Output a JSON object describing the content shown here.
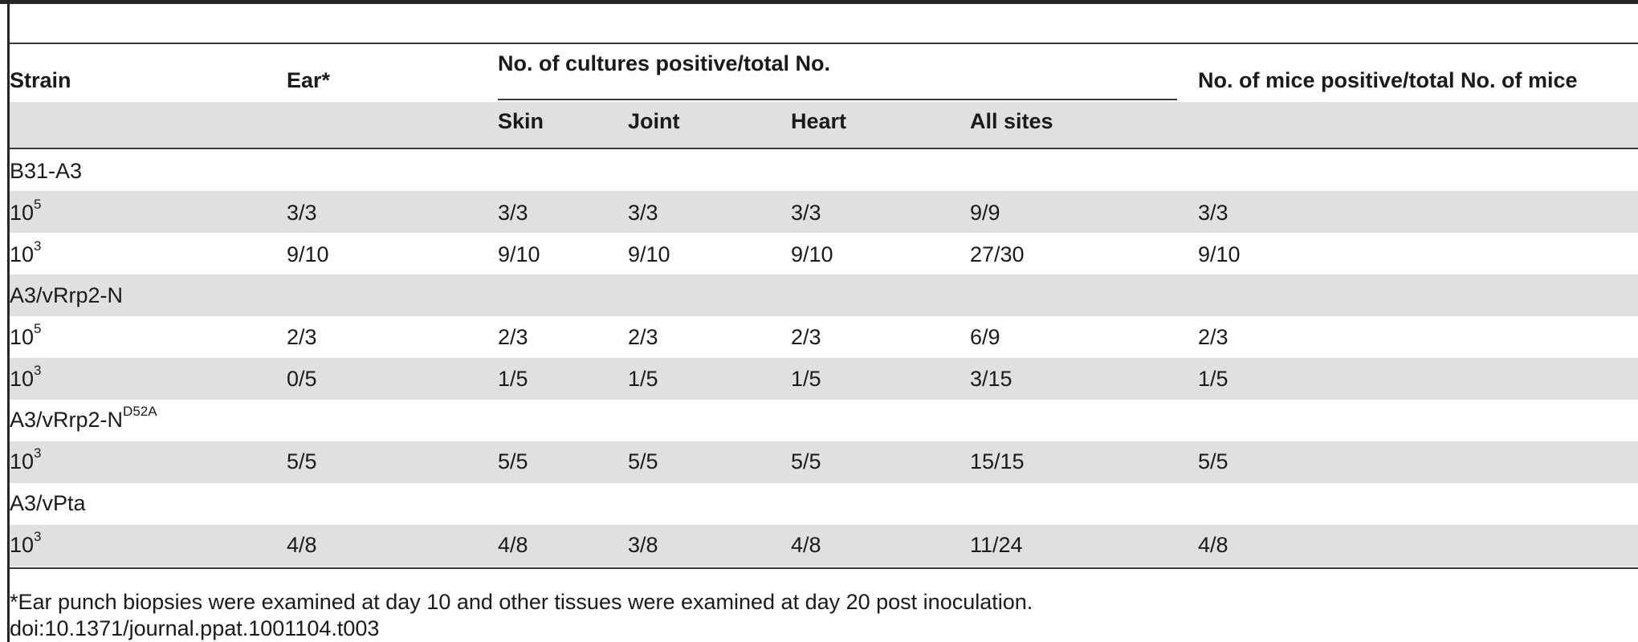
{
  "table": {
    "headers": {
      "strain": "Strain",
      "ear": "Ear*",
      "cultures_group": "No. of cultures positive/total No.",
      "mice": "No. of mice positive/total No. of mice",
      "skin": "Skin",
      "joint": "Joint",
      "heart": "Heart",
      "all_sites": "All sites"
    },
    "groups": [
      {
        "strain": "B31-A3",
        "strain_sup": "",
        "rows": [
          {
            "dose_base": "10",
            "dose_exp": "5",
            "ear": "3/3",
            "skin": "3/3",
            "joint": "3/3",
            "heart": "3/3",
            "all_sites": "9/9",
            "mice": "3/3"
          },
          {
            "dose_base": "10",
            "dose_exp": "3",
            "ear": "9/10",
            "skin": "9/10",
            "joint": "9/10",
            "heart": "9/10",
            "all_sites": "27/30",
            "mice": "9/10"
          }
        ]
      },
      {
        "strain": "A3/vRrp2-N",
        "strain_sup": "",
        "rows": [
          {
            "dose_base": "10",
            "dose_exp": "5",
            "ear": "2/3",
            "skin": "2/3",
            "joint": "2/3",
            "heart": "2/3",
            "all_sites": "6/9",
            "mice": "2/3"
          },
          {
            "dose_base": "10",
            "dose_exp": "3",
            "ear": "0/5",
            "skin": "1/5",
            "joint": "1/5",
            "heart": "1/5",
            "all_sites": "3/15",
            "mice": "1/5"
          }
        ]
      },
      {
        "strain": "A3/vRrp2-N",
        "strain_sup": "D52A",
        "rows": [
          {
            "dose_base": "10",
            "dose_exp": "3",
            "ear": "5/5",
            "skin": "5/5",
            "joint": "5/5",
            "heart": "5/5",
            "all_sites": "15/15",
            "mice": "5/5"
          }
        ]
      },
      {
        "strain": "A3/vPta",
        "strain_sup": "",
        "rows": [
          {
            "dose_base": "10",
            "dose_exp": "3",
            "ear": "4/8",
            "skin": "4/8",
            "joint": "3/8",
            "heart": "4/8",
            "all_sites": "11/24",
            "mice": "4/8"
          }
        ]
      }
    ]
  },
  "footnote": "*Ear punch biopsies were examined at day 10 and other tissues were examined at day 20 post inoculation.",
  "doi": "doi:10.1371/journal.ppat.1001104.t003",
  "colors": {
    "band": "#dfe0e1",
    "rule": "#3a3a3a",
    "text": "#1a1a1a"
  }
}
